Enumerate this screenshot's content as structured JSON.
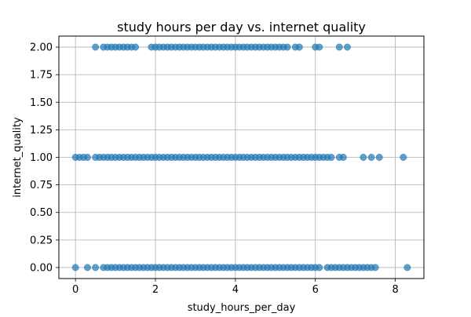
{
  "chart_data": {
    "type": "scatter",
    "title": "study hours per day vs. internet quality",
    "xlabel": "study_hours_per_day",
    "ylabel": "internet_quality",
    "xlim": [
      -0.415,
      8.715
    ],
    "ylim": [
      -0.1,
      2.1
    ],
    "xticks": [
      0,
      2,
      4,
      6,
      8
    ],
    "xtick_labels": [
      "0",
      "2",
      "4",
      "6",
      "8"
    ],
    "yticks": [
      0.0,
      0.25,
      0.5,
      0.75,
      1.0,
      1.25,
      1.5,
      1.75,
      2.0
    ],
    "ytick_labels": [
      "0.00",
      "0.25",
      "0.50",
      "0.75",
      "1.00",
      "1.25",
      "1.50",
      "1.75",
      "2.00"
    ],
    "grid": true,
    "marker_color": "#1f77b4",
    "marker_alpha": 0.7,
    "series": [
      {
        "y": 2,
        "x": [
          0.5,
          0.7,
          0.8,
          0.9,
          1.0,
          1.1,
          1.2,
          1.3,
          1.4,
          1.5,
          1.9,
          2.0,
          2.1,
          2.2,
          2.3,
          2.4,
          2.5,
          2.6,
          2.7,
          2.8,
          2.9,
          3.0,
          3.1,
          3.2,
          3.3,
          3.4,
          3.5,
          3.6,
          3.7,
          3.8,
          3.9,
          4.0,
          4.1,
          4.2,
          4.3,
          4.4,
          4.5,
          4.6,
          4.7,
          4.8,
          4.9,
          5.0,
          5.1,
          5.2,
          5.3,
          5.5,
          5.6,
          6.0,
          6.1,
          6.6,
          6.8
        ]
      },
      {
        "y": 1,
        "x": [
          0.0,
          0.1,
          0.2,
          0.3,
          0.5,
          0.6,
          0.7,
          0.8,
          0.9,
          1.0,
          1.1,
          1.2,
          1.3,
          1.4,
          1.5,
          1.6,
          1.7,
          1.8,
          1.9,
          2.0,
          2.1,
          2.2,
          2.3,
          2.4,
          2.5,
          2.6,
          2.7,
          2.8,
          2.9,
          3.0,
          3.1,
          3.2,
          3.3,
          3.4,
          3.5,
          3.6,
          3.7,
          3.8,
          3.9,
          4.0,
          4.1,
          4.2,
          4.3,
          4.4,
          4.5,
          4.6,
          4.7,
          4.8,
          4.9,
          5.0,
          5.1,
          5.2,
          5.3,
          5.4,
          5.5,
          5.6,
          5.7,
          5.8,
          5.9,
          6.0,
          6.1,
          6.2,
          6.3,
          6.4,
          6.6,
          6.7,
          7.2,
          7.4,
          7.6,
          8.2
        ]
      },
      {
        "y": 0,
        "x": [
          0.0,
          0.3,
          0.5,
          0.7,
          0.8,
          0.9,
          1.0,
          1.1,
          1.2,
          1.3,
          1.4,
          1.5,
          1.6,
          1.7,
          1.8,
          1.9,
          2.0,
          2.1,
          2.2,
          2.3,
          2.4,
          2.5,
          2.6,
          2.7,
          2.8,
          2.9,
          3.0,
          3.1,
          3.2,
          3.3,
          3.4,
          3.5,
          3.6,
          3.7,
          3.8,
          3.9,
          4.0,
          4.1,
          4.2,
          4.3,
          4.4,
          4.5,
          4.6,
          4.7,
          4.8,
          4.9,
          5.0,
          5.1,
          5.2,
          5.3,
          5.4,
          5.5,
          5.6,
          5.7,
          5.8,
          5.9,
          6.0,
          6.1,
          6.3,
          6.4,
          6.5,
          6.6,
          6.7,
          6.8,
          6.9,
          7.0,
          7.1,
          7.2,
          7.3,
          7.4,
          7.5,
          8.3
        ]
      }
    ]
  }
}
